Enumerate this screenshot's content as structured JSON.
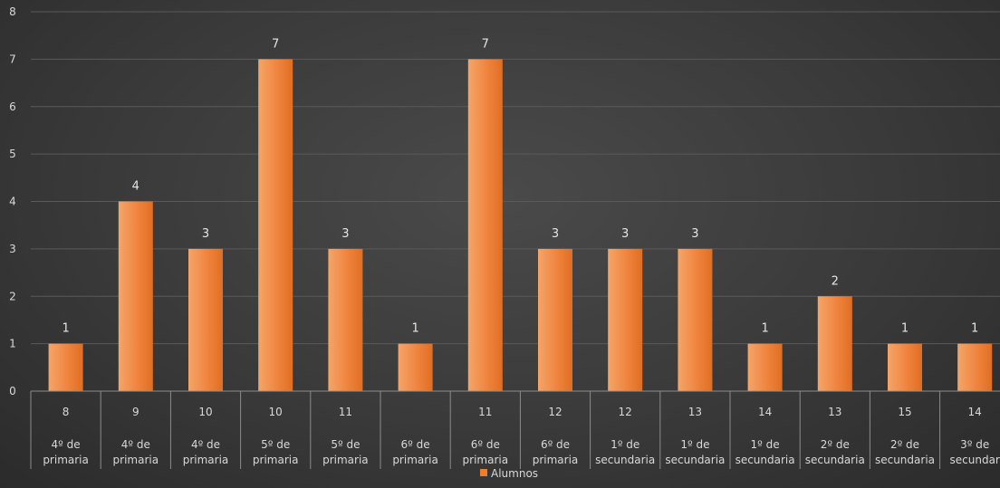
{
  "chart_data": {
    "type": "bar",
    "title": "",
    "ylim": [
      0,
      8
    ],
    "yticks": [
      "0",
      "1",
      "2",
      "3",
      "4",
      "5",
      "6",
      "7",
      "8"
    ],
    "grid": true,
    "legend_position": "bottom",
    "categories": [
      {
        "top": "8",
        "bottom": [
          "4º de",
          "primaria"
        ]
      },
      {
        "top": "9",
        "bottom": [
          "4º de",
          "primaria"
        ]
      },
      {
        "top": "10",
        "bottom": [
          "4º de",
          "primaria"
        ]
      },
      {
        "top": "10",
        "bottom": [
          "5º de",
          "primaria"
        ]
      },
      {
        "top": "11",
        "bottom": [
          "5º de",
          "primaria"
        ]
      },
      {
        "top": "",
        "bottom": [
          "6º de",
          "primaria"
        ]
      },
      {
        "top": "11",
        "bottom": [
          "6º de",
          "primaria"
        ]
      },
      {
        "top": "12",
        "bottom": [
          "6º de",
          "primaria"
        ]
      },
      {
        "top": "12",
        "bottom": [
          "1º de",
          "secundaria"
        ]
      },
      {
        "top": "13",
        "bottom": [
          "1º de",
          "secundaria"
        ]
      },
      {
        "top": "14",
        "bottom": [
          "1º de",
          "secundaria"
        ]
      },
      {
        "top": "13",
        "bottom": [
          "2º de",
          "secundaria"
        ]
      },
      {
        "top": "15",
        "bottom": [
          "2º de",
          "secundaria"
        ]
      },
      {
        "top": "14",
        "bottom": [
          "3º de",
          "secundar"
        ]
      }
    ],
    "series": [
      {
        "name": "Alumnos",
        "color": "#ED7D31",
        "values": [
          1,
          4,
          3,
          7,
          3,
          1,
          7,
          3,
          3,
          3,
          1,
          2,
          1,
          1
        ]
      }
    ]
  }
}
